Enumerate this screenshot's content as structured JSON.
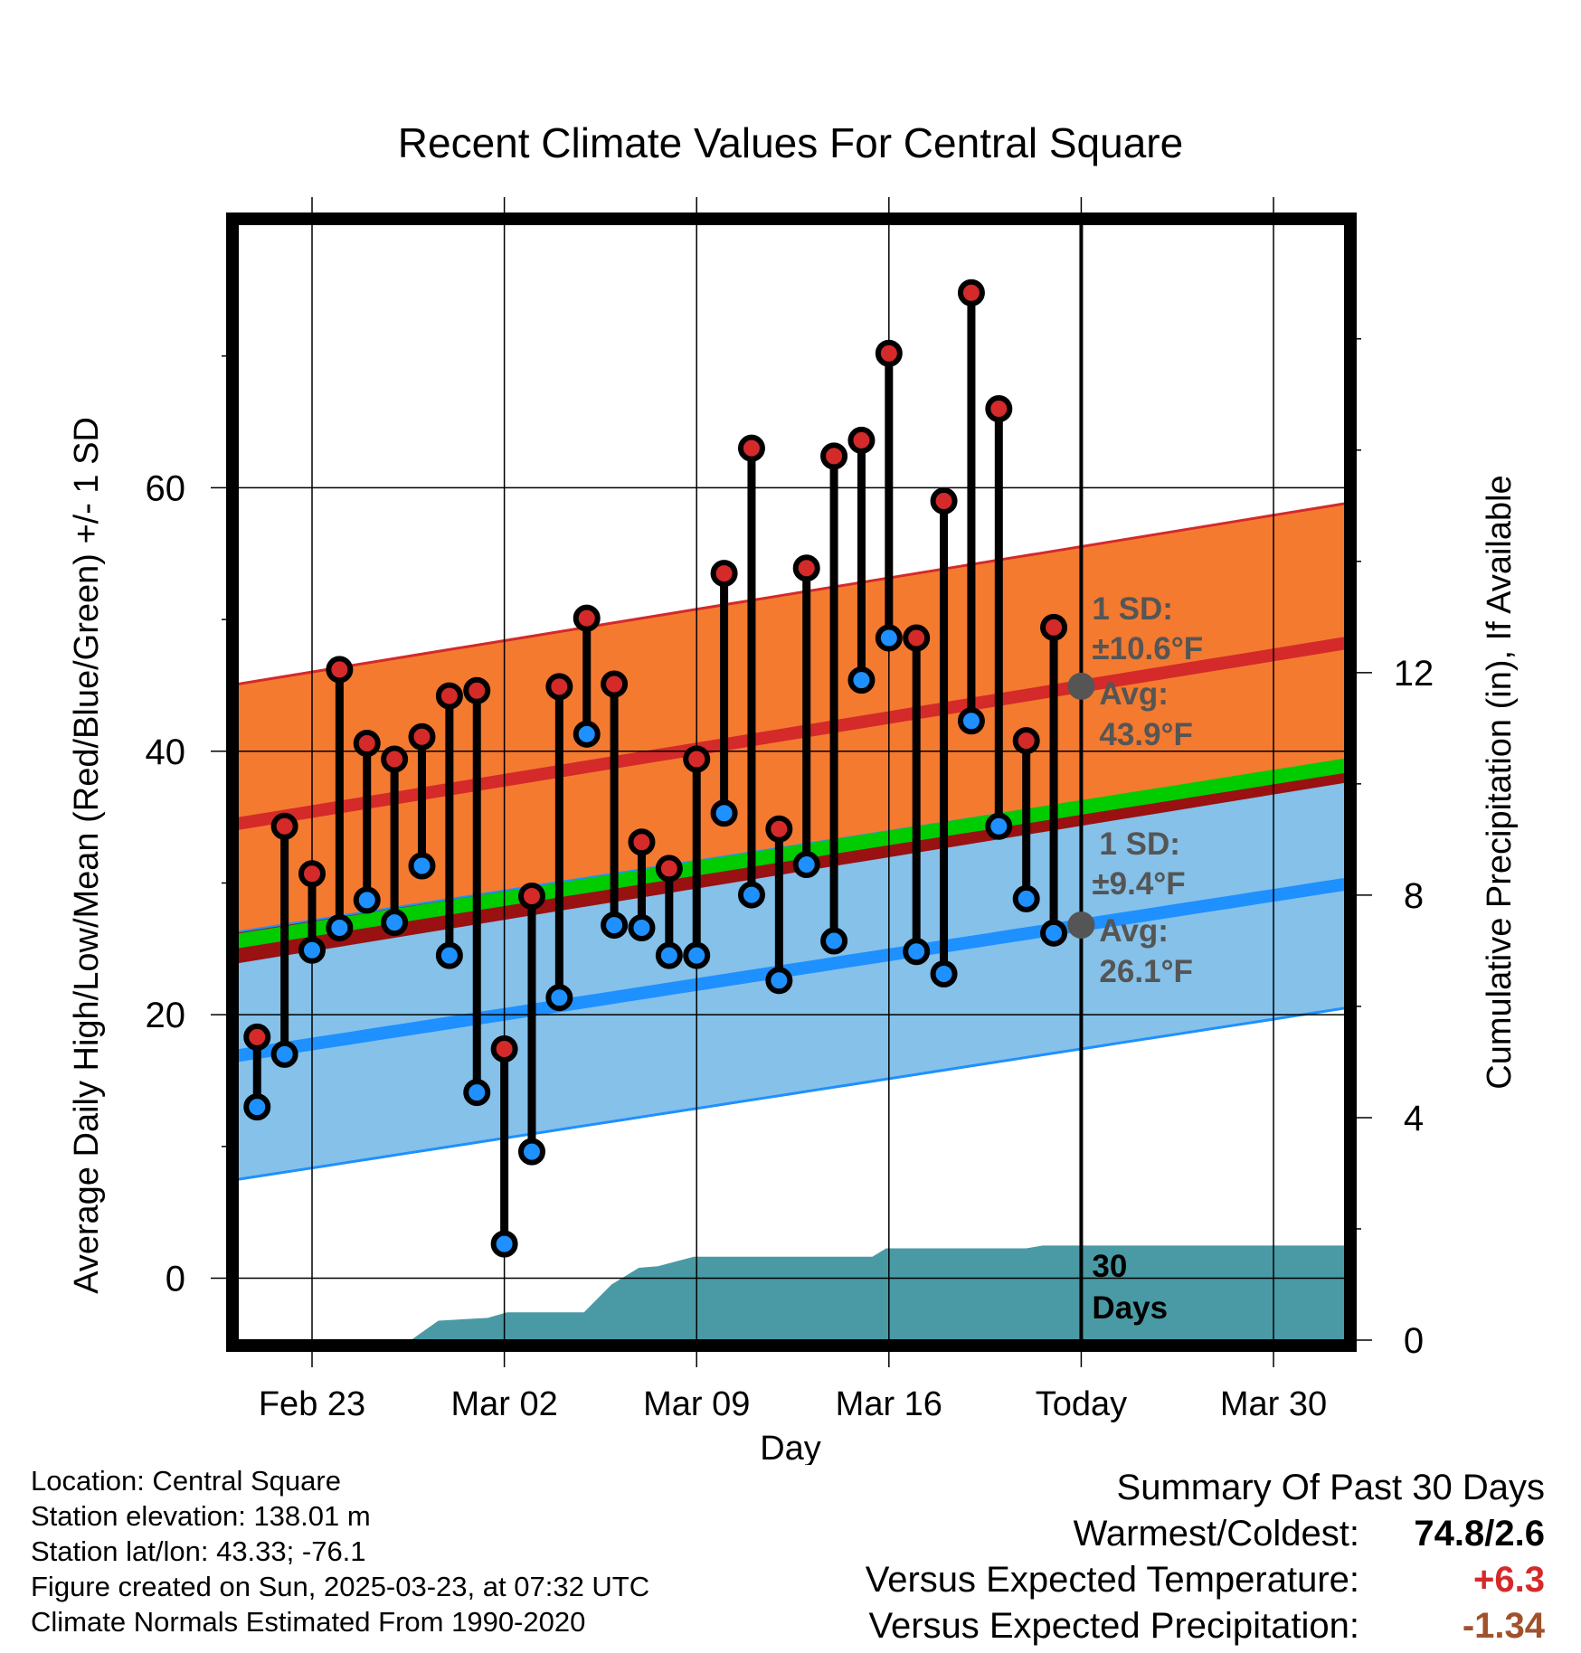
{
  "title": "Recent Climate Values For Central Square",
  "y_label": "Average Daily High/Low/Mean (Red/Blue/Green) +/- 1 SD",
  "y2_label": "Cumulative Precipitation (in), If Available",
  "x_label": "Day",
  "high_sd": {
    "line1": "1 SD:",
    "line2": "±10.6°F",
    "line3": "Avg:",
    "line4": "43.9°F"
  },
  "low_sd": {
    "line1": "1 SD:",
    "line2": "±9.4°F",
    "line3": "Avg:",
    "line4": "26.1°F"
  },
  "days_label": {
    "line1": "30",
    "line2": "Days"
  },
  "info": {
    "location": "Location: Central Square",
    "elevation": "Station elevation: 138.01 m",
    "latlon": "Station lat/lon: 43.33; -76.1",
    "created": "Figure created on Sun, 2025-03-23, at 07:32 UTC",
    "normals": "Climate Normals Estimated From 1990-2020"
  },
  "summary": {
    "title": "Summary Of Past 30 Days",
    "warm_cold_label": "Warmest/Coldest:",
    "warm_cold_value": "74.8/2.6",
    "temp_label": "Versus Expected Temperature:",
    "temp_value": "+6.3",
    "precip_label": "Versus Expected Precipitation:",
    "precip_value": "-1.34"
  },
  "colors": {
    "high_band": "#f47a30",
    "high_line": "#d42a2a",
    "low_band": "#85c1e9",
    "low_line": "#1e90ff",
    "mean_line": "#00cc00",
    "overlap": "#991111",
    "precip": "#4a9aa5",
    "high_dot": "#d42a2a",
    "low_dot": "#1e90ff",
    "warm_value": "#d42a2a",
    "precip_value": "#a0522d"
  },
  "chart_data": {
    "type": "line",
    "x_ticks": [
      {
        "day": 2,
        "label": "Feb 23"
      },
      {
        "day": 9,
        "label": "Mar 02"
      },
      {
        "day": 16,
        "label": "Mar 09"
      },
      {
        "day": 23,
        "label": "Mar 16"
      },
      {
        "day": 30,
        "label": "Today"
      },
      {
        "day": 37,
        "label": "Mar 30"
      }
    ],
    "x_range": [
      -0.7,
      39.6
    ],
    "y_ticks": [
      0,
      20,
      40,
      60
    ],
    "y_range": [
      -4.7,
      80
    ],
    "y2_ticks": [
      0,
      4,
      8,
      12
    ],
    "y2_range": [
      0,
      20.06
    ],
    "today_day": 30,
    "normal": {
      "high_mean": [
        [
          -0.7,
          34.5
        ],
        [
          39.6,
          48.2
        ]
      ],
      "high_sd": 10.6,
      "low_mean": [
        [
          -0.7,
          16.9
        ],
        [
          39.6,
          29.9
        ]
      ],
      "low_sd": 9.4,
      "mean": [
        [
          -0.7,
          25.6
        ],
        [
          39.6,
          38.9
        ]
      ]
    },
    "daily": [
      {
        "day": 0,
        "high": 18.3,
        "low": 13.0
      },
      {
        "day": 1,
        "high": 34.3,
        "low": 17.0
      },
      {
        "day": 2,
        "high": 30.7,
        "low": 24.9
      },
      {
        "day": 3,
        "high": 46.2,
        "low": 26.6
      },
      {
        "day": 4,
        "high": 40.6,
        "low": 28.7
      },
      {
        "day": 5,
        "high": 39.4,
        "low": 27.0
      },
      {
        "day": 6,
        "high": 41.1,
        "low": 31.3
      },
      {
        "day": 7,
        "high": 44.2,
        "low": 24.5
      },
      {
        "day": 8,
        "high": 44.6,
        "low": 14.1
      },
      {
        "day": 9,
        "high": 17.4,
        "low": 2.6
      },
      {
        "day": 10,
        "high": 29.0,
        "low": 9.6
      },
      {
        "day": 11,
        "high": 44.9,
        "low": 21.3
      },
      {
        "day": 12,
        "high": 50.1,
        "low": 41.3
      },
      {
        "day": 13,
        "high": 45.1,
        "low": 26.8
      },
      {
        "day": 14,
        "high": 33.1,
        "low": 26.6
      },
      {
        "day": 15,
        "high": 31.1,
        "low": 24.5
      },
      {
        "day": 16,
        "high": 39.4,
        "low": 24.5
      },
      {
        "day": 17,
        "high": 53.5,
        "low": 35.3
      },
      {
        "day": 18,
        "high": 63.0,
        "low": 29.1
      },
      {
        "day": 19,
        "high": 34.1,
        "low": 22.6
      },
      {
        "day": 20,
        "high": 53.9,
        "low": 31.4
      },
      {
        "day": 21,
        "high": 62.4,
        "low": 25.6
      },
      {
        "day": 22,
        "high": 63.6,
        "low": 45.4
      },
      {
        "day": 23,
        "high": 70.2,
        "low": 48.6
      },
      {
        "day": 24,
        "high": 48.6,
        "low": 24.8
      },
      {
        "day": 25,
        "high": 59.0,
        "low": 23.1
      },
      {
        "day": 26,
        "high": 74.8,
        "low": 42.3
      },
      {
        "day": 27,
        "high": 66.0,
        "low": 34.3
      },
      {
        "day": 28,
        "high": 40.8,
        "low": 28.8
      },
      {
        "day": 29,
        "high": 49.4,
        "low": 26.2
      }
    ],
    "precip_cumulative": [
      [
        -0.7,
        0
      ],
      [
        5.6,
        0
      ],
      [
        6.6,
        0.35
      ],
      [
        8.4,
        0.4
      ],
      [
        9.1,
        0.5
      ],
      [
        11.9,
        0.5
      ],
      [
        12.9,
        1.0
      ],
      [
        13.9,
        1.3
      ],
      [
        14.6,
        1.33
      ],
      [
        15.9,
        1.5
      ],
      [
        22.4,
        1.5
      ],
      [
        22.9,
        1.65
      ],
      [
        28.0,
        1.65
      ],
      [
        28.6,
        1.7
      ],
      [
        39.6,
        1.7
      ]
    ]
  }
}
